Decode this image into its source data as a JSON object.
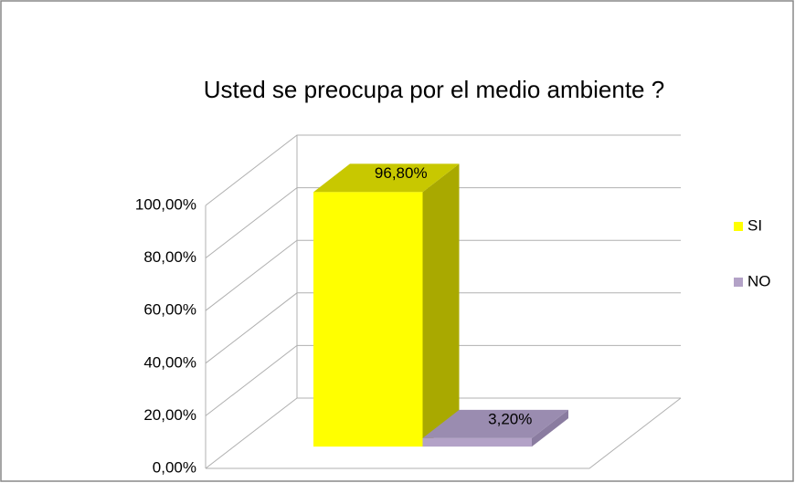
{
  "chart_data": {
    "type": "bar3d",
    "title": "Usted se preocupa por el medio ambiente ?",
    "categories": [
      null
    ],
    "series": [
      {
        "name": "SI",
        "color": "#ffff00",
        "side": "#a9a900",
        "top": "#c8c800",
        "values": [
          96.8
        ],
        "value_labels": [
          "96,80%"
        ]
      },
      {
        "name": "NO",
        "color": "#b3a2c7",
        "side": "#8a7ca0",
        "top": "#9a8cb0",
        "values": [
          3.2
        ],
        "value_labels": [
          "3,20%"
        ]
      }
    ],
    "ylim": [
      0,
      100
    ],
    "yticks": [
      {
        "value": 0,
        "label": "0,00%"
      },
      {
        "value": 20,
        "label": "20,00%"
      },
      {
        "value": 40,
        "label": "40,00%"
      },
      {
        "value": 60,
        "label": "60,00%"
      },
      {
        "value": 80,
        "label": "80,00%"
      },
      {
        "value": 100,
        "label": "100,00%"
      }
    ],
    "grid": true,
    "legend": "right"
  }
}
